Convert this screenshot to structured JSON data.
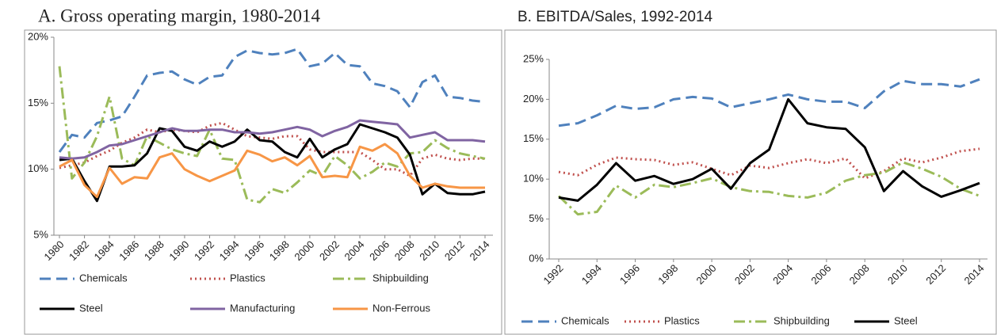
{
  "chart_data": [
    {
      "type": "line",
      "title": "A. Gross operating margin, 1980-2014",
      "x": [
        1980,
        1981,
        1982,
        1983,
        1984,
        1985,
        1986,
        1987,
        1988,
        1989,
        1990,
        1991,
        1992,
        1993,
        1994,
        1995,
        1996,
        1997,
        1998,
        1999,
        2000,
        2001,
        2002,
        2003,
        2004,
        2005,
        2006,
        2007,
        2008,
        2009,
        2010,
        2011,
        2012,
        2013,
        2014
      ],
      "xlim": [
        1980,
        2014
      ],
      "xticks": [
        1980,
        1982,
        1984,
        1986,
        1988,
        1990,
        1992,
        1994,
        1996,
        1998,
        2000,
        2002,
        2004,
        2006,
        2008,
        2010,
        2012,
        2014
      ],
      "ylim": [
        5,
        20
      ],
      "yticks": [
        {
          "value": 5,
          "label": "5%"
        },
        {
          "value": 10,
          "label": "10%"
        },
        {
          "value": 15,
          "label": "15%"
        },
        {
          "value": 20,
          "label": "20%"
        }
      ],
      "grid": false,
      "series": [
        {
          "name": "Chemicals",
          "color": "#4f81bd",
          "dash": "dashed",
          "values": [
            11.3,
            12.6,
            12.4,
            13.5,
            13.7,
            14.0,
            15.5,
            17.1,
            17.3,
            17.4,
            16.8,
            16.4,
            17.0,
            17.1,
            18.5,
            19.0,
            18.8,
            18.7,
            18.8,
            19.1,
            17.8,
            18.0,
            18.8,
            17.9,
            17.8,
            16.5,
            16.3,
            15.9,
            14.7,
            16.6,
            17.1,
            15.5,
            15.4,
            15.2,
            15.1
          ]
        },
        {
          "name": "Plastics",
          "color": "#c0504d",
          "dash": "dotted",
          "values": [
            10.1,
            10.3,
            10.5,
            11.0,
            11.4,
            12.0,
            12.4,
            13.0,
            12.8,
            13.0,
            12.9,
            12.8,
            13.3,
            13.5,
            13.0,
            12.5,
            12.4,
            12.3,
            12.5,
            12.5,
            11.5,
            11.3,
            11.3,
            11.3,
            11.3,
            10.7,
            10.0,
            10.0,
            9.5,
            10.8,
            11.1,
            10.8,
            10.7,
            10.8,
            10.8
          ]
        },
        {
          "name": "Shipbuilding",
          "color": "#9bbb59",
          "dash": "dashdot",
          "values": [
            17.8,
            9.3,
            10.5,
            12.5,
            15.5,
            10.8,
            10.3,
            12.5,
            12.0,
            11.5,
            11.2,
            11.0,
            13.0,
            10.8,
            10.7,
            7.7,
            7.5,
            8.5,
            8.2,
            9.0,
            9.9,
            9.5,
            11.0,
            10.3,
            9.3,
            9.8,
            10.5,
            10.2,
            11.2,
            11.3,
            12.2,
            11.6,
            11.2,
            11.0,
            10.8
          ]
        },
        {
          "name": "Steel",
          "color": "#000000",
          "dash": "solid",
          "values": [
            10.7,
            10.8,
            9.1,
            7.6,
            10.2,
            10.2,
            10.3,
            11.2,
            13.1,
            12.9,
            11.7,
            11.4,
            12.1,
            11.7,
            12.1,
            13.0,
            12.2,
            12.1,
            11.3,
            10.9,
            12.3,
            10.9,
            11.5,
            11.9,
            13.4,
            13.1,
            12.8,
            12.4,
            11.1,
            8.1,
            8.9,
            8.2,
            8.1,
            8.1,
            8.3
          ]
        },
        {
          "name": "Manufacturing",
          "color": "#8064a2",
          "dash": "solid",
          "values": [
            10.9,
            10.8,
            10.9,
            11.3,
            11.8,
            11.9,
            12.2,
            12.5,
            12.8,
            13.1,
            12.9,
            12.9,
            13.0,
            13.0,
            12.8,
            12.8,
            12.7,
            12.8,
            13.0,
            13.2,
            13.0,
            12.5,
            12.9,
            13.2,
            13.7,
            13.6,
            13.5,
            13.4,
            12.4,
            12.6,
            12.8,
            12.2,
            12.2,
            12.2,
            12.1
          ]
        },
        {
          "name": "Non-Ferrous",
          "color": "#f79646",
          "dash": "solid",
          "values": [
            10.2,
            10.7,
            8.8,
            7.9,
            10.1,
            8.9,
            9.4,
            9.3,
            10.9,
            11.2,
            10.0,
            9.5,
            9.1,
            9.5,
            9.9,
            11.4,
            11.1,
            10.6,
            10.9,
            10.3,
            11.0,
            9.4,
            9.5,
            9.4,
            11.7,
            11.4,
            11.9,
            11.2,
            9.5,
            8.6,
            8.9,
            8.7,
            8.6,
            8.6,
            8.6
          ]
        }
      ]
    },
    {
      "type": "line",
      "title": "B. EBITDA/Sales, 1992-2014",
      "x": [
        1992,
        1993,
        1994,
        1995,
        1996,
        1997,
        1998,
        1999,
        2000,
        2001,
        2002,
        2003,
        2004,
        2005,
        2006,
        2007,
        2008,
        2009,
        2010,
        2011,
        2012,
        2013,
        2014
      ],
      "xlim": [
        1992,
        2014
      ],
      "xticks": [
        1992,
        1994,
        1996,
        1998,
        2000,
        2002,
        2004,
        2006,
        2008,
        2010,
        2012,
        2014
      ],
      "ylim": [
        0,
        25
      ],
      "yticks": [
        {
          "value": 0,
          "label": "0%"
        },
        {
          "value": 5,
          "label": "5%"
        },
        {
          "value": 10,
          "label": "10%"
        },
        {
          "value": 15,
          "label": "15%"
        },
        {
          "value": 20,
          "label": "20%"
        },
        {
          "value": 25,
          "label": "25%"
        }
      ],
      "grid": false,
      "series": [
        {
          "name": "Chemicals",
          "color": "#4f81bd",
          "dash": "dashed",
          "values": [
            16.7,
            17.0,
            18.0,
            19.2,
            18.8,
            19.0,
            20.0,
            20.3,
            20.1,
            19.0,
            19.5,
            20.0,
            20.6,
            20.0,
            19.7,
            19.7,
            18.9,
            21.0,
            22.3,
            21.9,
            21.9,
            21.6,
            22.5
          ]
        },
        {
          "name": "Plastics",
          "color": "#c0504d",
          "dash": "dotted",
          "values": [
            10.9,
            10.5,
            11.8,
            12.7,
            12.5,
            12.4,
            11.8,
            12.1,
            11.3,
            10.5,
            11.7,
            11.4,
            12.0,
            12.5,
            12.0,
            12.6,
            10.1,
            11.0,
            12.6,
            12.1,
            12.7,
            13.5,
            13.8
          ]
        },
        {
          "name": "Shipbuilding",
          "color": "#9bbb59",
          "dash": "dashdot",
          "values": [
            7.9,
            5.6,
            5.9,
            9.2,
            7.7,
            9.3,
            9.0,
            9.5,
            10.1,
            9.0,
            8.5,
            8.4,
            7.9,
            7.7,
            8.3,
            9.8,
            10.5,
            10.8,
            12.1,
            11.3,
            10.3,
            8.8,
            7.9
          ]
        },
        {
          "name": "Steel",
          "color": "#000000",
          "dash": "solid",
          "values": [
            7.7,
            7.3,
            9.3,
            12.0,
            9.8,
            10.4,
            9.4,
            10.0,
            11.3,
            8.8,
            12.0,
            13.7,
            20.0,
            17.0,
            16.5,
            16.3,
            14.0,
            8.5,
            11.0,
            9.1,
            7.8,
            8.6,
            9.5
          ]
        }
      ]
    }
  ]
}
